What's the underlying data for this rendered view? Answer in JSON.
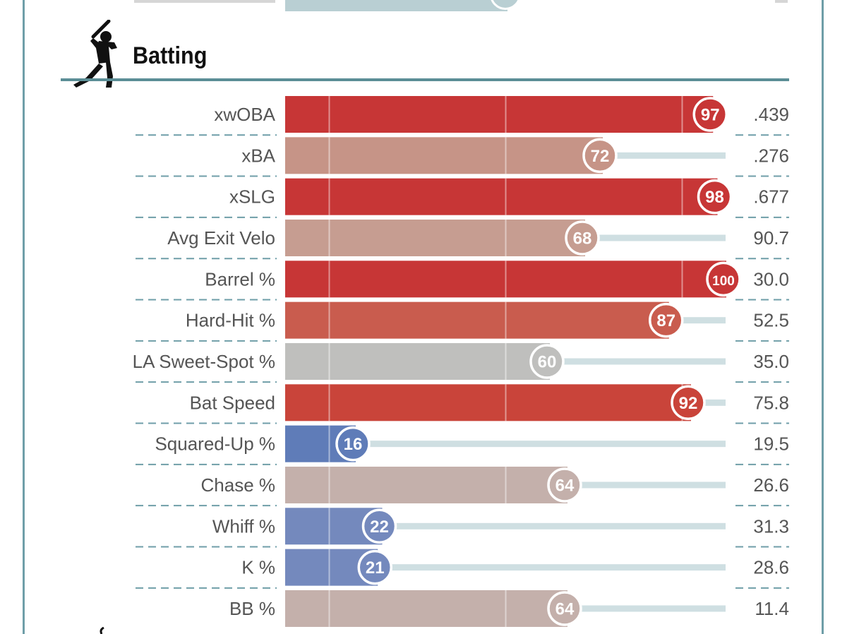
{
  "section": {
    "title": "Batting",
    "icon": "batter-icon"
  },
  "chart_data": {
    "type": "bar",
    "title": "Batting",
    "orientation": "horizontal",
    "xlim": [
      0,
      100
    ],
    "value_label": "percentile",
    "reference_lines": [
      10,
      50,
      90
    ],
    "categories": [
      "xwOBA",
      "xBA",
      "xSLG",
      "Avg Exit Velo",
      "Barrel %",
      "Hard-Hit %",
      "LA Sweet-Spot %",
      "Bat Speed",
      "Squared-Up %",
      "Chase %",
      "Whiff %",
      "K %",
      "BB %"
    ],
    "percentiles": [
      97,
      72,
      98,
      68,
      100,
      87,
      60,
      92,
      16,
      64,
      22,
      21,
      64
    ],
    "stat_values": [
      ".439",
      ".276",
      ".677",
      "90.7",
      "30.0",
      "52.5",
      "35.0",
      "75.8",
      "19.5",
      "26.6",
      "31.3",
      "28.6",
      "11.4"
    ],
    "colors": [
      "#c73636",
      "#c69487",
      "#c73636",
      "#c69d91",
      "#c73636",
      "#c95c4e",
      "#bfbfbd",
      "#c9443a",
      "#5f7cb8",
      "#c4b0ab",
      "#7489bd",
      "#7489bd",
      "#c4b0ab"
    ]
  }
}
